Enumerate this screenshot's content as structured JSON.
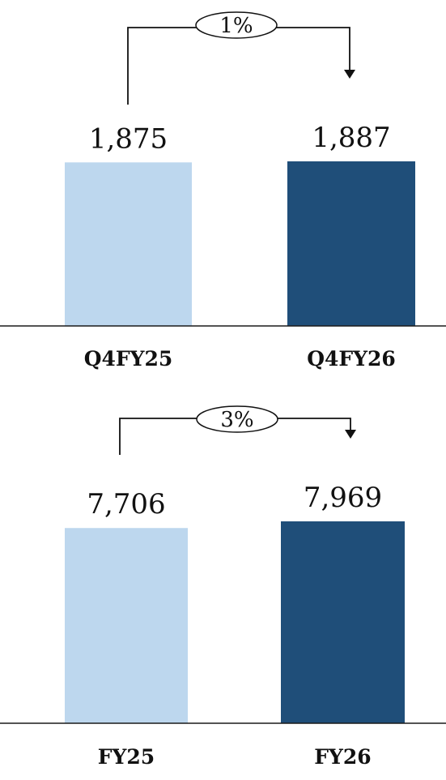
{
  "chart_data": [
    {
      "type": "bar",
      "categories": [
        "Q4FY25",
        "Q4FY26"
      ],
      "values": [
        1875,
        1887
      ],
      "data_labels": [
        "1,875",
        "1,887"
      ],
      "colors": [
        "#BDD7EE",
        "#1F4E79"
      ],
      "change_label": "1%",
      "title": "",
      "xlabel": "",
      "ylabel": "",
      "grid": false
    },
    {
      "type": "bar",
      "categories": [
        "FY25",
        "FY26"
      ],
      "values": [
        7706,
        7969
      ],
      "data_labels": [
        "7,706",
        "7,969"
      ],
      "colors": [
        "#BDD7EE",
        "#1F4E79"
      ],
      "change_label": "3%",
      "title": "",
      "xlabel": "",
      "ylabel": "",
      "grid": false
    }
  ]
}
